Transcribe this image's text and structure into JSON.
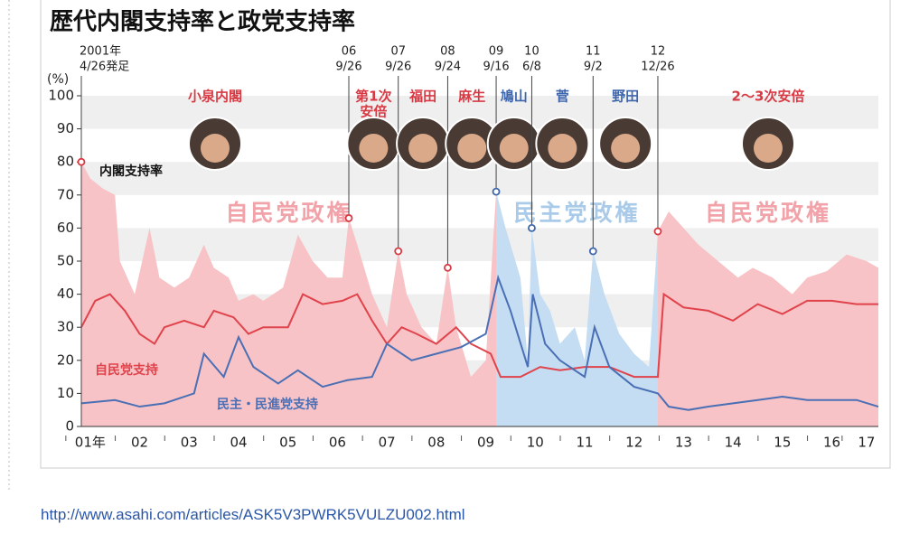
{
  "chart_data": {
    "type": "area_line",
    "title": "歴代内閣支持率と政党支持率",
    "y_unit": "(%)",
    "ylim": [
      0,
      100
    ],
    "yticks": [
      0,
      10,
      20,
      30,
      40,
      50,
      60,
      70,
      80,
      90,
      100
    ],
    "xlim": [
      2001.32,
      2017.44
    ],
    "xticks": [
      {
        "value": 2001.5,
        "label": "01年"
      },
      {
        "value": 2002.5,
        "label": "02"
      },
      {
        "value": 2003.5,
        "label": "03"
      },
      {
        "value": 2004.5,
        "label": "04"
      },
      {
        "value": 2005.5,
        "label": "05"
      },
      {
        "value": 2006.5,
        "label": "06"
      },
      {
        "value": 2007.5,
        "label": "07"
      },
      {
        "value": 2008.5,
        "label": "08"
      },
      {
        "value": 2009.5,
        "label": "09"
      },
      {
        "value": 2010.5,
        "label": "10"
      },
      {
        "value": 2011.5,
        "label": "11"
      },
      {
        "value": 2012.5,
        "label": "12"
      },
      {
        "value": 2013.5,
        "label": "13"
      },
      {
        "value": 2014.5,
        "label": "14"
      },
      {
        "value": 2015.5,
        "label": "15"
      },
      {
        "value": 2016.5,
        "label": "16"
      },
      {
        "value": 2017.2,
        "label": "17"
      }
    ],
    "eras": [
      {
        "label": "自民党政権",
        "start": 2001.32,
        "end": 2009.71,
        "color": "#f7c3c6",
        "text_color": "#f2a3a9",
        "name_color": "#d83a44"
      },
      {
        "label": "民主党政権",
        "start": 2009.71,
        "end": 2012.98,
        "color": "#c4ddf2",
        "text_color": "#a9cbe9",
        "name_color": "#3f66ad"
      },
      {
        "label": "自民党政権",
        "start": 2012.98,
        "end": 2017.44,
        "color": "#f7c3c6",
        "text_color": "#f2a3a9",
        "name_color": "#d83a44"
      }
    ],
    "series": [
      {
        "name": "内閣支持率",
        "kind": "area",
        "color": "#222222",
        "x": [
          2001.32,
          2001.5,
          2001.75,
          2002.0,
          2002.1,
          2002.4,
          2002.7,
          2002.9,
          2003.2,
          2003.5,
          2003.8,
          2004.0,
          2004.3,
          2004.5,
          2004.8,
          2005.0,
          2005.4,
          2005.7,
          2006.0,
          2006.3,
          2006.6,
          2006.73,
          2006.9,
          2007.2,
          2007.5,
          2007.73,
          2007.9,
          2008.2,
          2008.5,
          2008.73,
          2008.9,
          2009.2,
          2009.5,
          2009.71,
          2009.9,
          2010.2,
          2010.35,
          2010.43,
          2010.6,
          2010.8,
          2011.0,
          2011.3,
          2011.5,
          2011.67,
          2011.9,
          2012.2,
          2012.5,
          2012.8,
          2012.98,
          2013.2,
          2013.5,
          2013.8,
          2014.2,
          2014.6,
          2014.9,
          2015.3,
          2015.7,
          2016.0,
          2016.4,
          2016.8,
          2017.2,
          2017.44
        ],
        "values": [
          80,
          75,
          72,
          70,
          50,
          40,
          60,
          45,
          42,
          45,
          55,
          48,
          45,
          38,
          40,
          38,
          42,
          58,
          50,
          45,
          45,
          63,
          55,
          40,
          30,
          53,
          40,
          30,
          25,
          48,
          30,
          15,
          20,
          71,
          60,
          45,
          20,
          60,
          40,
          35,
          25,
          30,
          20,
          53,
          40,
          28,
          22,
          18,
          59,
          65,
          60,
          55,
          50,
          45,
          48,
          45,
          40,
          45,
          47,
          52,
          50,
          48
        ]
      },
      {
        "name": "自民党支持",
        "kind": "line",
        "color": "#e0434b",
        "x": [
          2001.32,
          2001.6,
          2001.9,
          2002.2,
          2002.5,
          2002.8,
          2003.0,
          2003.4,
          2003.8,
          2004.0,
          2004.4,
          2004.7,
          2005.0,
          2005.5,
          2005.8,
          2006.2,
          2006.6,
          2006.9,
          2007.2,
          2007.5,
          2007.8,
          2008.1,
          2008.5,
          2008.9,
          2009.2,
          2009.6,
          2009.8,
          2010.2,
          2010.6,
          2011.0,
          2011.5,
          2012.0,
          2012.5,
          2012.98,
          2013.1,
          2013.5,
          2014.0,
          2014.5,
          2015.0,
          2015.5,
          2016.0,
          2016.5,
          2017.0,
          2017.44
        ],
        "values": [
          30,
          38,
          40,
          35,
          28,
          25,
          30,
          32,
          30,
          35,
          33,
          28,
          30,
          30,
          40,
          37,
          38,
          40,
          32,
          25,
          30,
          28,
          25,
          30,
          25,
          22,
          15,
          15,
          18,
          17,
          18,
          18,
          15,
          15,
          40,
          36,
          35,
          32,
          37,
          34,
          38,
          38,
          37,
          37
        ]
      },
      {
        "name": "民主・民進党支持",
        "kind": "line",
        "color": "#4a6fb5",
        "x": [
          2001.32,
          2002.0,
          2002.5,
          2003.0,
          2003.6,
          2003.8,
          2004.2,
          2004.5,
          2004.8,
          2005.3,
          2005.7,
          2006.2,
          2006.7,
          2007.2,
          2007.5,
          2008.0,
          2008.5,
          2009.0,
          2009.5,
          2009.75,
          2010.0,
          2010.35,
          2010.45,
          2010.7,
          2011.0,
          2011.5,
          2011.7,
          2012.0,
          2012.5,
          2012.98,
          2013.2,
          2013.6,
          2014.0,
          2014.5,
          2015.0,
          2015.5,
          2016.0,
          2016.5,
          2017.0,
          2017.44
        ],
        "values": [
          7,
          8,
          6,
          7,
          10,
          22,
          15,
          27,
          18,
          13,
          17,
          12,
          14,
          15,
          25,
          20,
          22,
          24,
          28,
          45,
          35,
          18,
          40,
          25,
          20,
          15,
          30,
          18,
          12,
          10,
          6,
          5,
          6,
          7,
          8,
          9,
          8,
          8,
          8,
          6
        ]
      }
    ],
    "cabinets": [
      {
        "date": [
          "2001年",
          "4/26発足"
        ],
        "x": 2001.32,
        "value": 80,
        "name": [
          "小泉内閣"
        ]
      },
      {
        "date": [
          "06",
          "9/26"
        ],
        "x": 2006.73,
        "value": 63,
        "name": [
          "第1次",
          "安倍"
        ]
      },
      {
        "date": [
          "07",
          "9/26"
        ],
        "x": 2007.73,
        "value": 53,
        "name": [
          "福田"
        ]
      },
      {
        "date": [
          "08",
          "9/24"
        ],
        "x": 2008.73,
        "value": 48,
        "name": [
          "麻生"
        ]
      },
      {
        "date": [
          "09",
          "9/16"
        ],
        "x": 2009.71,
        "value": 71,
        "name": [
          "鳩山"
        ]
      },
      {
        "date": [
          "10",
          "6/8"
        ],
        "x": 2010.43,
        "value": 60,
        "name": [
          "菅"
        ]
      },
      {
        "date": [
          "11",
          "9/2"
        ],
        "x": 2011.67,
        "value": 53,
        "name": [
          "野田"
        ]
      },
      {
        "date": [
          "12",
          "12/26"
        ],
        "x": 2012.98,
        "value": 59,
        "name": [
          "2〜3次安倍"
        ]
      }
    ]
  },
  "link": {
    "url": "http://www.asahi.com/articles/ASK5V3PWRK5VULZU002.html"
  }
}
